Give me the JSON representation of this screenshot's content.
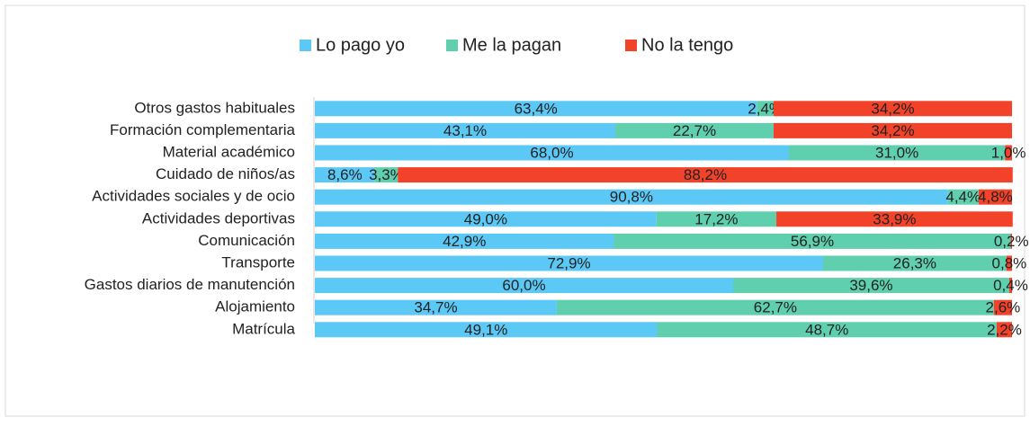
{
  "chart_data": {
    "type": "stacked_barh",
    "categories": [
      "Otros gastos habituales",
      "Formación complementaria",
      "Material académico",
      "Cuidado de niños/as",
      "Actividades sociales y de ocio",
      "Actividades deportivas",
      "Comunicación",
      "Transporte",
      "Gastos diarios de manutención",
      "Alojamiento",
      "Matrícula"
    ],
    "series": [
      {
        "name": "Lo pago yo",
        "color": "#5bc8f5",
        "values": [
          63.4,
          43.1,
          68.0,
          8.6,
          90.8,
          49.0,
          42.9,
          72.9,
          60.0,
          34.7,
          49.1
        ],
        "value_labels": [
          "63,4%",
          "43,1%",
          "68,0%",
          "8,6%",
          "90,8%",
          "49,0%",
          "42,9%",
          "72,9%",
          "60,0%",
          "34,7%",
          "49,1%"
        ]
      },
      {
        "name": "Me la pagan",
        "color": "#5fcfae",
        "values": [
          2.4,
          22.7,
          31.0,
          3.3,
          4.4,
          17.2,
          56.9,
          26.3,
          39.6,
          62.7,
          48.7
        ],
        "value_labels": [
          "2,4%",
          "22,7%",
          "31,0%",
          "3,3%",
          "4,4%",
          "17,2%",
          "56,9%",
          "26,3%",
          "39,6%",
          "62,7%",
          "48,7%"
        ]
      },
      {
        "name": "No la tengo",
        "color": "#f2432a",
        "values": [
          34.2,
          34.2,
          1.0,
          88.2,
          4.8,
          33.9,
          0.2,
          0.8,
          0.4,
          2.6,
          2.2
        ],
        "value_labels": [
          "34,2%",
          "34,2%",
          "1,0%",
          "88,2%",
          "4,8%",
          "33,9%",
          "0,2%",
          "0,8%",
          "0,4%",
          "2,6%",
          "2,2%"
        ]
      }
    ],
    "xlim": [
      0,
      100
    ],
    "legend": "top"
  }
}
